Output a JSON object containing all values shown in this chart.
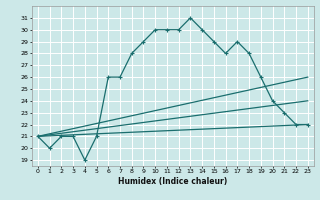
{
  "xlabel": "Humidex (Indice chaleur)",
  "ylabel": "",
  "bg_color": "#cce8e8",
  "grid_color": "#ffffff",
  "line_color": "#1a6e6e",
  "xlim": [
    -0.5,
    23.5
  ],
  "ylim": [
    18.5,
    32.0
  ],
  "xticks": [
    0,
    1,
    2,
    3,
    4,
    5,
    6,
    7,
    8,
    9,
    10,
    11,
    12,
    13,
    14,
    15,
    16,
    17,
    18,
    19,
    20,
    21,
    22,
    23
  ],
  "yticks": [
    19,
    20,
    21,
    22,
    23,
    24,
    25,
    26,
    27,
    28,
    29,
    30,
    31
  ],
  "series": [
    {
      "x": [
        0,
        1,
        2,
        3,
        4,
        5,
        6,
        7,
        8,
        9,
        10,
        11,
        12,
        13,
        14,
        15,
        16,
        17,
        18,
        19,
        20,
        21,
        22,
        23
      ],
      "y": [
        21,
        20,
        21,
        21,
        19,
        21,
        26,
        26,
        28,
        29,
        30,
        30,
        30,
        31,
        30,
        29,
        28,
        29,
        28,
        26,
        24,
        23,
        22,
        22
      ],
      "marker": "+"
    },
    {
      "x": [
        0,
        23
      ],
      "y": [
        21,
        26
      ],
      "marker": null
    },
    {
      "x": [
        0,
        23
      ],
      "y": [
        21,
        24
      ],
      "marker": null
    },
    {
      "x": [
        0,
        23
      ],
      "y": [
        21,
        22
      ],
      "marker": null
    }
  ]
}
